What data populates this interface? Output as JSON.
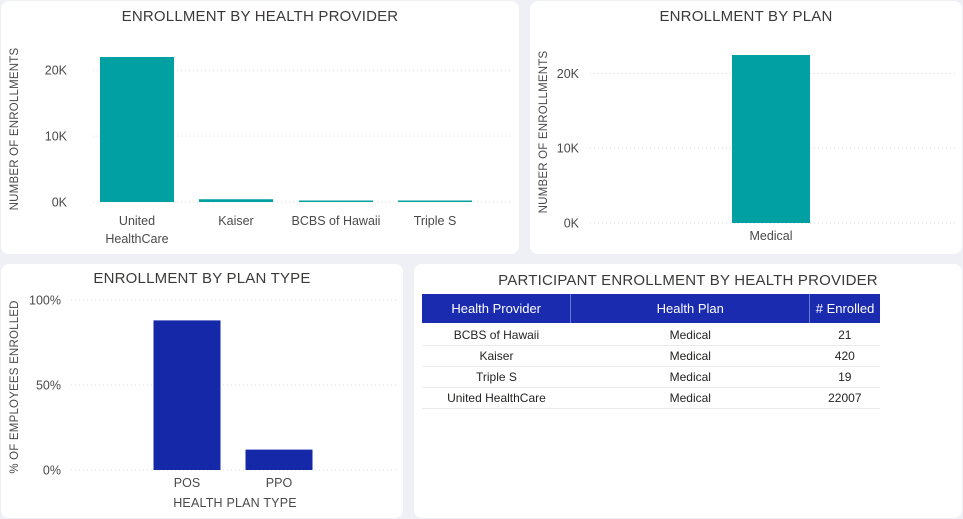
{
  "colors": {
    "teal": "#00a0a3",
    "navy": "#1428a8",
    "header_bg": "#1a2bb0"
  },
  "chart_data": [
    {
      "id": "provider",
      "type": "bar",
      "title": "ENROLLMENT BY HEALTH PROVIDER",
      "xlabel": "",
      "ylabel": "NUMBER OF ENROLLMENTS",
      "categories": [
        "United HealthCare",
        "Kaiser",
        "BCBS of Hawaii",
        "Triple S"
      ],
      "category_lines": [
        [
          "United",
          "HealthCare"
        ],
        [
          "Kaiser"
        ],
        [
          "BCBS of Hawaii"
        ],
        [
          "Triple S"
        ]
      ],
      "values": [
        22007,
        420,
        21,
        19
      ],
      "ylim": [
        0,
        22007
      ],
      "yticks": [
        0,
        10000,
        20000
      ],
      "ytick_labels": [
        "0K",
        "10K",
        "20K"
      ],
      "grid": true
    },
    {
      "id": "plan",
      "type": "bar",
      "title": "ENROLLMENT BY PLAN",
      "xlabel": "",
      "ylabel": "NUMBER OF ENROLLMENTS",
      "categories": [
        "Medical"
      ],
      "category_lines": [
        [
          "Medical"
        ]
      ],
      "values": [
        22467
      ],
      "ylim": [
        0,
        22467
      ],
      "yticks": [
        0,
        10000,
        20000
      ],
      "ytick_labels": [
        "0K",
        "10K",
        "20K"
      ],
      "grid": true
    },
    {
      "id": "plantype",
      "type": "bar",
      "title": "ENROLLMENT BY PLAN TYPE",
      "xlabel": "HEALTH PLAN TYPE",
      "ylabel": "% OF EMPLOYEES ENROLLED",
      "categories": [
        "POS",
        "PPO"
      ],
      "category_lines": [
        [
          "POS"
        ],
        [
          "PPO"
        ]
      ],
      "values": [
        88,
        12
      ],
      "ylim": [
        0,
        100
      ],
      "yticks": [
        0,
        50,
        100
      ],
      "ytick_labels": [
        "0%",
        "50%",
        "100%"
      ],
      "grid": true
    },
    {
      "id": "table",
      "type": "table",
      "title": "PARTICIPANT ENROLLMENT BY HEALTH PROVIDER",
      "columns": [
        "Health Provider",
        "Health Plan",
        "# Enrolled"
      ],
      "rows": [
        [
          "BCBS of Hawaii",
          "Medical",
          "21"
        ],
        [
          "Kaiser",
          "Medical",
          "420"
        ],
        [
          "Triple S",
          "Medical",
          "19"
        ],
        [
          "United HealthCare",
          "Medical",
          "22007"
        ]
      ]
    }
  ]
}
